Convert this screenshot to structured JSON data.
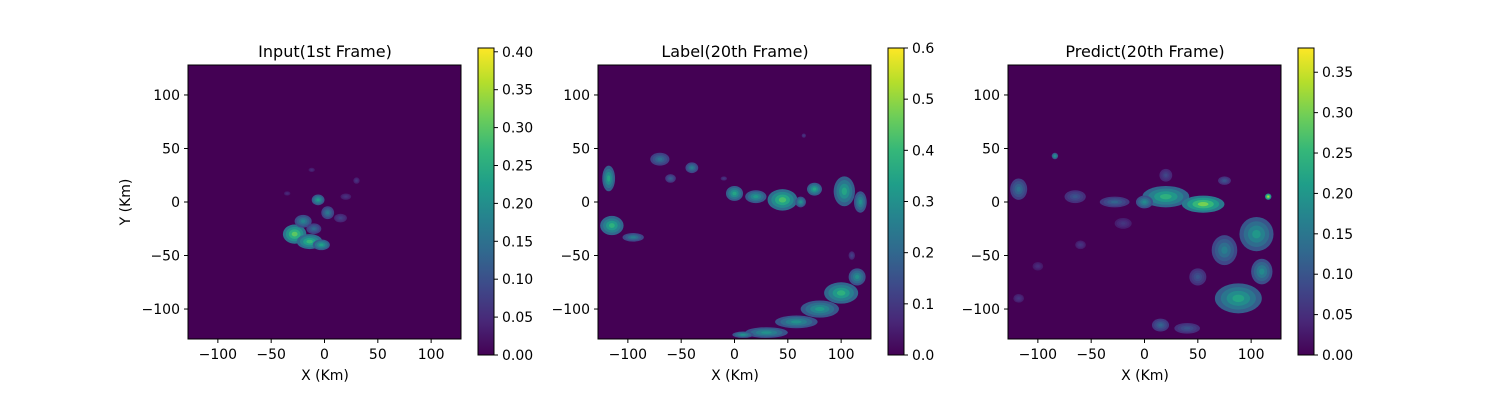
{
  "colormap": {
    "name": "viridis",
    "stops": [
      "#440154",
      "#482878",
      "#3e4989",
      "#31688e",
      "#26828e",
      "#1f9e89",
      "#35b779",
      "#6ece58",
      "#b5de2b",
      "#fde725"
    ]
  },
  "chart_data": [
    {
      "type": "heatmap",
      "title": "Input(1st Frame)",
      "xlabel": "X (Km)",
      "ylabel": "Y (Km)",
      "xlim": [
        -128,
        128
      ],
      "ylim": [
        -128,
        128
      ],
      "xticks": [
        -100,
        -50,
        0,
        50,
        100
      ],
      "yticks": [
        -100,
        -50,
        0,
        50,
        100
      ],
      "colorbar": {
        "min": 0,
        "max": 0.405,
        "ticks": [
          0.0,
          0.05,
          0.1,
          0.15,
          0.2,
          0.25,
          0.3,
          0.35,
          0.4
        ],
        "tick_labels": [
          "0.00",
          "0.05",
          "0.10",
          "0.15",
          "0.20",
          "0.25",
          "0.30",
          "0.35",
          "0.40"
        ]
      },
      "features": [
        {
          "x": -28,
          "y": -30,
          "rx": 11,
          "ry": 9,
          "v": 0.3
        },
        {
          "x": -14,
          "y": -37,
          "rx": 12,
          "ry": 7,
          "v": 0.27
        },
        {
          "x": -3,
          "y": -40,
          "rx": 8,
          "ry": 5,
          "v": 0.23
        },
        {
          "x": -20,
          "y": -18,
          "rx": 8,
          "ry": 6,
          "v": 0.18
        },
        {
          "x": -6,
          "y": 2,
          "rx": 6,
          "ry": 5,
          "v": 0.22
        },
        {
          "x": 3,
          "y": -10,
          "rx": 6,
          "ry": 6,
          "v": 0.16
        },
        {
          "x": -10,
          "y": -25,
          "rx": 7,
          "ry": 5,
          "v": 0.14
        },
        {
          "x": 15,
          "y": -15,
          "rx": 6,
          "ry": 4,
          "v": 0.08
        },
        {
          "x": 30,
          "y": 20,
          "rx": 3,
          "ry": 3,
          "v": 0.06
        },
        {
          "x": -12,
          "y": 30,
          "rx": 3,
          "ry": 2,
          "v": 0.05
        },
        {
          "x": 20,
          "y": 5,
          "rx": 5,
          "ry": 3,
          "v": 0.06
        },
        {
          "x": -35,
          "y": 8,
          "rx": 3,
          "ry": 2,
          "v": 0.05
        }
      ]
    },
    {
      "type": "heatmap",
      "title": "Label(20th Frame)",
      "xlabel": "X (Km)",
      "ylabel": "",
      "xlim": [
        -128,
        128
      ],
      "ylim": [
        -128,
        128
      ],
      "xticks": [
        -100,
        -50,
        0,
        50,
        100
      ],
      "yticks": [
        -100,
        -50,
        0,
        50,
        100
      ],
      "colorbar": {
        "min": 0,
        "max": 0.6,
        "ticks": [
          0.0,
          0.1,
          0.2,
          0.3,
          0.4,
          0.5,
          0.6
        ],
        "tick_labels": [
          "0.0",
          "0.1",
          "0.2",
          "0.3",
          "0.4",
          "0.5",
          "0.6"
        ]
      },
      "features": [
        {
          "x": -118,
          "y": 22,
          "rx": 6,
          "ry": 12,
          "v": 0.35
        },
        {
          "x": -115,
          "y": -22,
          "rx": 11,
          "ry": 9,
          "v": 0.38
        },
        {
          "x": -95,
          "y": -33,
          "rx": 10,
          "ry": 4,
          "v": 0.25
        },
        {
          "x": -70,
          "y": 40,
          "rx": 9,
          "ry": 6,
          "v": 0.22
        },
        {
          "x": -40,
          "y": 32,
          "rx": 6,
          "ry": 5,
          "v": 0.25
        },
        {
          "x": -60,
          "y": 22,
          "rx": 5,
          "ry": 4,
          "v": 0.18
        },
        {
          "x": 0,
          "y": 8,
          "rx": 8,
          "ry": 7,
          "v": 0.35
        },
        {
          "x": 20,
          "y": 5,
          "rx": 10,
          "ry": 6,
          "v": 0.32
        },
        {
          "x": 45,
          "y": 2,
          "rx": 14,
          "ry": 10,
          "v": 0.42
        },
        {
          "x": 62,
          "y": 0,
          "rx": 5,
          "ry": 5,
          "v": 0.3
        },
        {
          "x": 75,
          "y": 12,
          "rx": 7,
          "ry": 6,
          "v": 0.35
        },
        {
          "x": 103,
          "y": 10,
          "rx": 10,
          "ry": 14,
          "v": 0.35
        },
        {
          "x": 118,
          "y": 0,
          "rx": 6,
          "ry": 10,
          "v": 0.3
        },
        {
          "x": 100,
          "y": -85,
          "rx": 16,
          "ry": 10,
          "v": 0.38
        },
        {
          "x": 80,
          "y": -100,
          "rx": 18,
          "ry": 8,
          "v": 0.32
        },
        {
          "x": 58,
          "y": -112,
          "rx": 20,
          "ry": 6,
          "v": 0.3
        },
        {
          "x": 30,
          "y": -122,
          "rx": 20,
          "ry": 5,
          "v": 0.3
        },
        {
          "x": 115,
          "y": -70,
          "rx": 8,
          "ry": 8,
          "v": 0.3
        },
        {
          "x": 8,
          "y": -124,
          "rx": 10,
          "ry": 3,
          "v": 0.3
        },
        {
          "x": 110,
          "y": -50,
          "rx": 3,
          "ry": 4,
          "v": 0.12
        },
        {
          "x": -10,
          "y": 22,
          "rx": 3,
          "ry": 2,
          "v": 0.1
        },
        {
          "x": 65,
          "y": 62,
          "rx": 2,
          "ry": 2,
          "v": 0.1
        }
      ]
    },
    {
      "type": "heatmap",
      "title": "Predict(20th Frame)",
      "xlabel": "X (Km)",
      "ylabel": "",
      "xlim": [
        -128,
        128
      ],
      "ylim": [
        -128,
        128
      ],
      "xticks": [
        -100,
        -50,
        0,
        50,
        100
      ],
      "yticks": [
        -100,
        -50,
        0,
        50,
        100
      ],
      "colorbar": {
        "min": 0,
        "max": 0.38,
        "ticks": [
          0.0,
          0.05,
          0.1,
          0.15,
          0.2,
          0.25,
          0.3,
          0.35
        ],
        "tick_labels": [
          "0.00",
          "0.05",
          "0.10",
          "0.15",
          "0.20",
          "0.25",
          "0.30",
          "0.35"
        ]
      },
      "features": [
        {
          "x": 20,
          "y": 5,
          "rx": 22,
          "ry": 10,
          "v": 0.24
        },
        {
          "x": 55,
          "y": -2,
          "rx": 20,
          "ry": 8,
          "v": 0.3
        },
        {
          "x": 0,
          "y": 0,
          "rx": 8,
          "ry": 6,
          "v": 0.18
        },
        {
          "x": -28,
          "y": 0,
          "rx": 14,
          "ry": 5,
          "v": 0.12
        },
        {
          "x": -65,
          "y": 5,
          "rx": 10,
          "ry": 6,
          "v": 0.1
        },
        {
          "x": -118,
          "y": 12,
          "rx": 8,
          "ry": 10,
          "v": 0.14
        },
        {
          "x": -84,
          "y": 43,
          "rx": 3,
          "ry": 3,
          "v": 0.2
        },
        {
          "x": 105,
          "y": -30,
          "rx": 16,
          "ry": 16,
          "v": 0.2
        },
        {
          "x": 75,
          "y": -45,
          "rx": 12,
          "ry": 14,
          "v": 0.16
        },
        {
          "x": 88,
          "y": -90,
          "rx": 22,
          "ry": 14,
          "v": 0.22
        },
        {
          "x": 110,
          "y": -65,
          "rx": 10,
          "ry": 12,
          "v": 0.18
        },
        {
          "x": 50,
          "y": -70,
          "rx": 8,
          "ry": 8,
          "v": 0.1
        },
        {
          "x": 15,
          "y": -115,
          "rx": 8,
          "ry": 6,
          "v": 0.12
        },
        {
          "x": 40,
          "y": -118,
          "rx": 12,
          "ry": 5,
          "v": 0.1
        },
        {
          "x": 116,
          "y": 5,
          "rx": 3,
          "ry": 3,
          "v": 0.34
        },
        {
          "x": -60,
          "y": -40,
          "rx": 5,
          "ry": 4,
          "v": 0.06
        },
        {
          "x": -20,
          "y": -20,
          "rx": 8,
          "ry": 5,
          "v": 0.06
        },
        {
          "x": -100,
          "y": -60,
          "rx": 5,
          "ry": 4,
          "v": 0.05
        },
        {
          "x": 20,
          "y": 25,
          "rx": 6,
          "ry": 6,
          "v": 0.08
        },
        {
          "x": -118,
          "y": -90,
          "rx": 5,
          "ry": 4,
          "v": 0.06
        },
        {
          "x": 75,
          "y": 20,
          "rx": 6,
          "ry": 4,
          "v": 0.1
        }
      ]
    }
  ]
}
